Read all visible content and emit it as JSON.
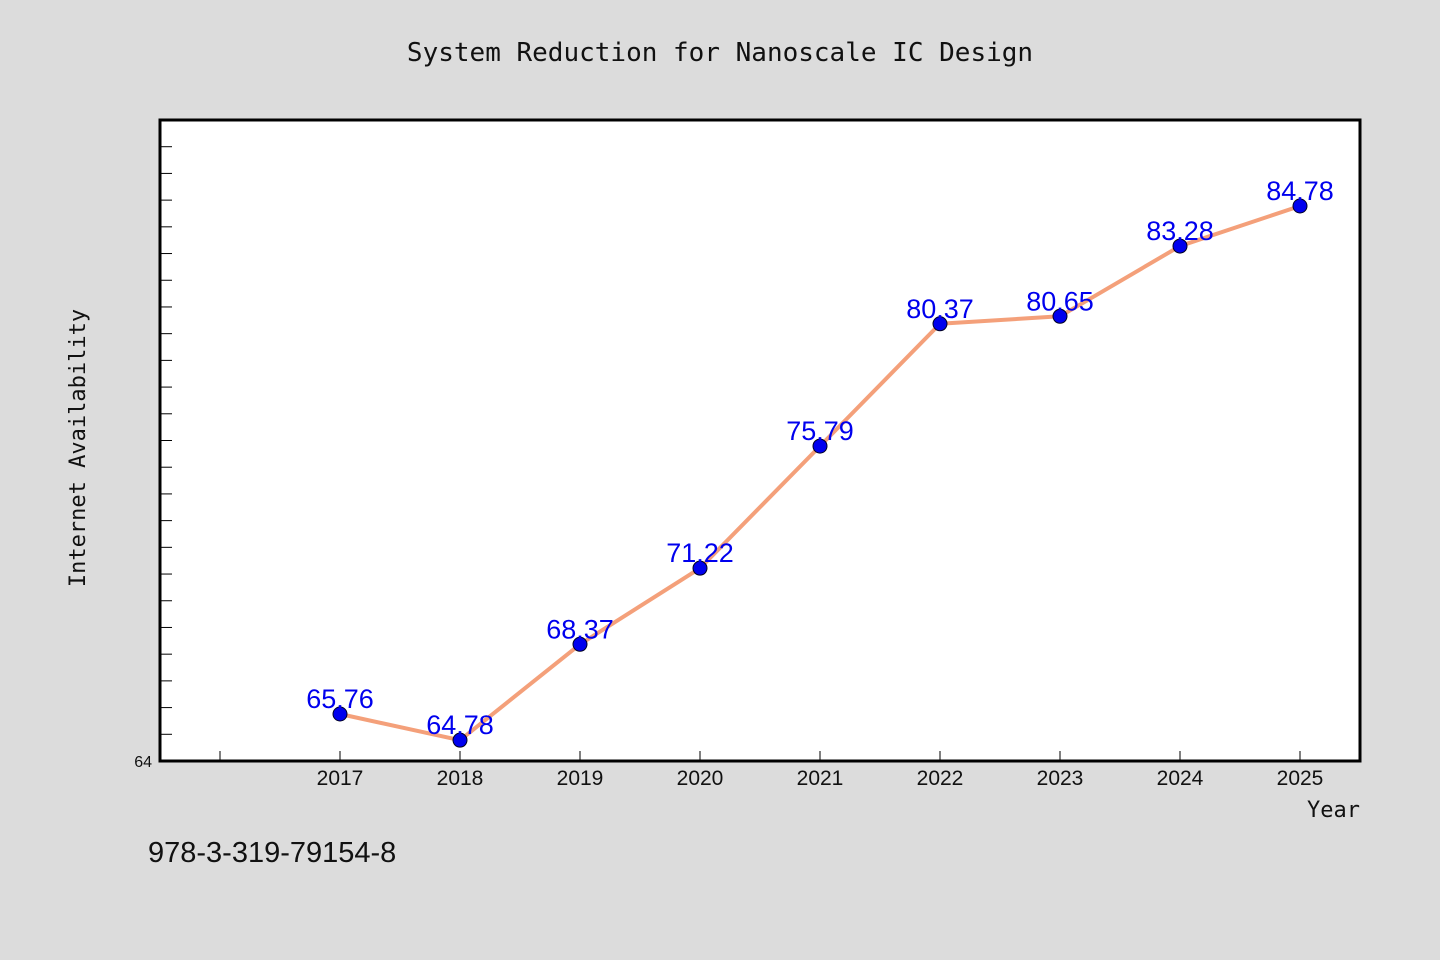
{
  "chart_data": {
    "type": "line",
    "title": "System Reduction for Nanoscale IC Design",
    "xlabel": "Year",
    "ylabel": "Internet Availability",
    "categories": [
      "2017",
      "2018",
      "2019",
      "2020",
      "2021",
      "2022",
      "2023",
      "2024",
      "2025"
    ],
    "series": [
      {
        "values": [
          65.76,
          64.78,
          68.37,
          71.22,
          75.79,
          80.37,
          80.65,
          83.28,
          84.78
        ],
        "line_color": "#f4a07a",
        "marker_color": "#0000ee"
      }
    ],
    "data_labels": [
      "65.76",
      "64.78",
      "68.37",
      "71.22",
      "75.79",
      "80.37",
      "80.65",
      "83.28",
      "84.78"
    ],
    "ylim": [
      64,
      88
    ],
    "y_tick_labels": [
      "64"
    ],
    "y_minor_tick_step": 1,
    "grid": false,
    "legend": "none"
  },
  "footer": {
    "isbn": "978-3-319-79154-8"
  },
  "colors": {
    "background": "#dcdcdc",
    "plot_background": "#ffffff",
    "line": "#f4a07a",
    "marker": "#0000ee",
    "data_label": "#0000ee"
  }
}
